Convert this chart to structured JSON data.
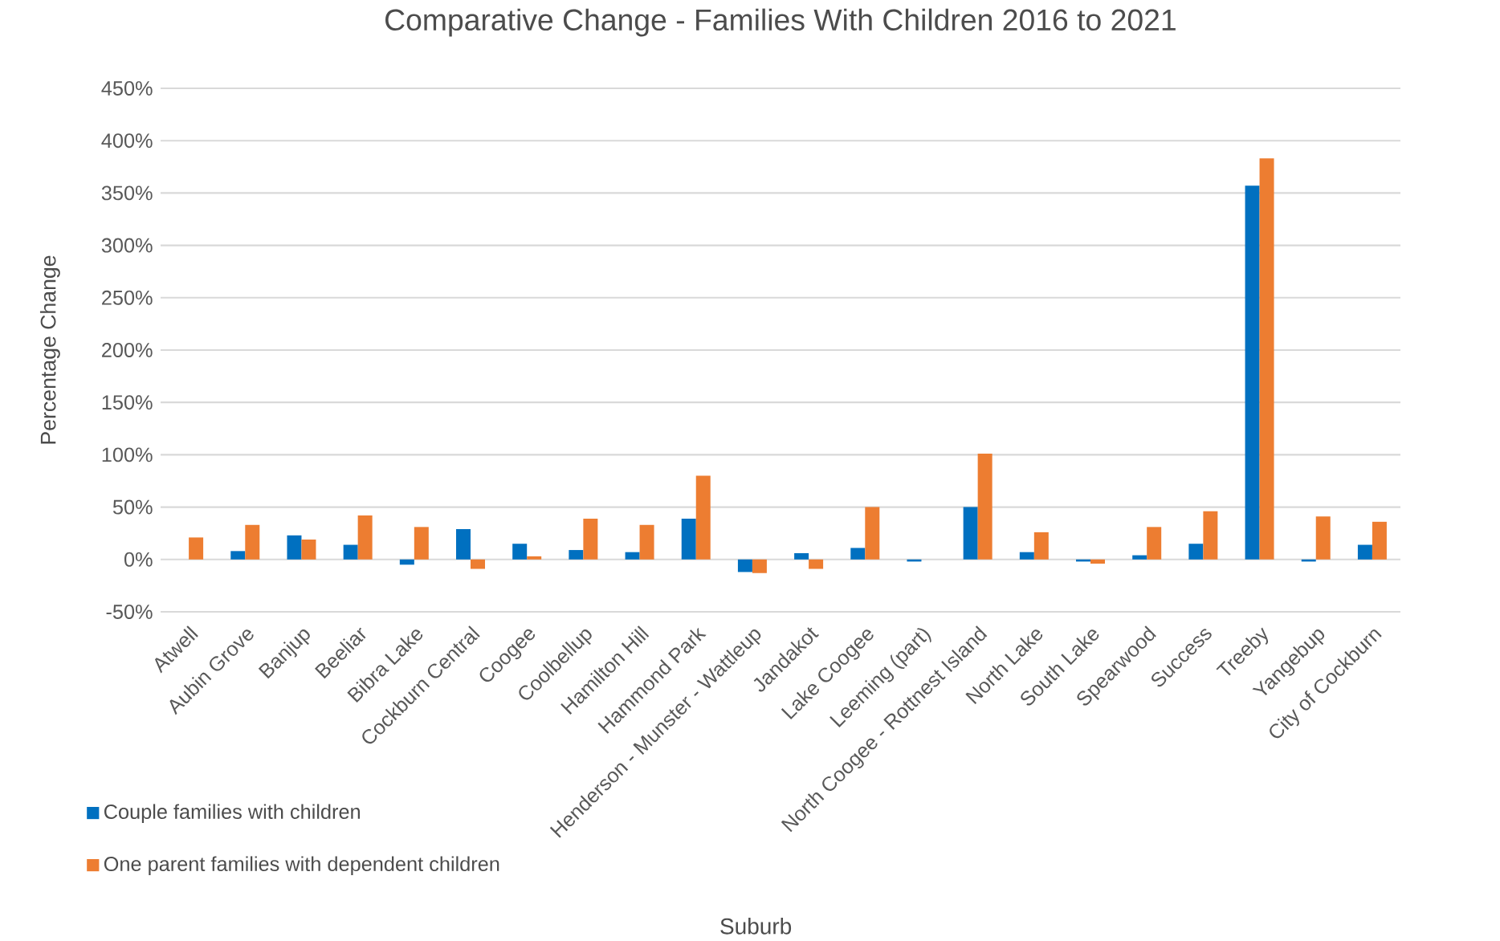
{
  "chart_data": {
    "type": "bar",
    "title": "Comparative Change - Families With Children 2016 to 2021",
    "xlabel": "Suburb",
    "ylabel": "Percentage Change",
    "categories": [
      "Atwell",
      "Aubin Grove",
      "Banjup",
      "Beeliar",
      "Bibra Lake",
      "Cockburn Central",
      "Coogee",
      "Coolbellup",
      "Hamilton Hill",
      "Hammond Park",
      "Henderson - Munster - Wattleup",
      "Jandakot",
      "Lake Coogee",
      "Leeming (part)",
      "North Coogee - Rottnest Island",
      "North Lake",
      "South Lake",
      "Spearwood",
      "Success",
      "Treeby",
      "Yangebup",
      "City of Cockburn"
    ],
    "series": [
      {
        "name": "Couple families with children",
        "color": "#0070c0",
        "values": [
          0,
          8,
          23,
          14,
          -5,
          29,
          15,
          9,
          7,
          39,
          -12,
          6,
          11,
          -2,
          50,
          7,
          -2,
          4,
          15,
          357,
          -2,
          14
        ]
      },
      {
        "name": "One parent families with dependent children",
        "color": "#ed7d31",
        "values": [
          21,
          33,
          19,
          42,
          31,
          -9,
          3,
          39,
          33,
          80,
          -13,
          -9,
          50,
          0,
          101,
          26,
          -4,
          31,
          46,
          383,
          41,
          36
        ]
      }
    ],
    "ylim": [
      -50,
      450
    ],
    "yticks": [
      {
        "value": -50,
        "label": "-50%"
      },
      {
        "value": 0,
        "label": "0%"
      },
      {
        "value": 50,
        "label": "50%"
      },
      {
        "value": 100,
        "label": "100%"
      },
      {
        "value": 150,
        "label": "150%"
      },
      {
        "value": 200,
        "label": "200%"
      },
      {
        "value": 250,
        "label": "250%"
      },
      {
        "value": 300,
        "label": "300%"
      },
      {
        "value": 350,
        "label": "350%"
      },
      {
        "value": 400,
        "label": "400%"
      },
      {
        "value": 450,
        "label": "450%"
      }
    ],
    "grid": "y",
    "legend": "bottom left"
  }
}
